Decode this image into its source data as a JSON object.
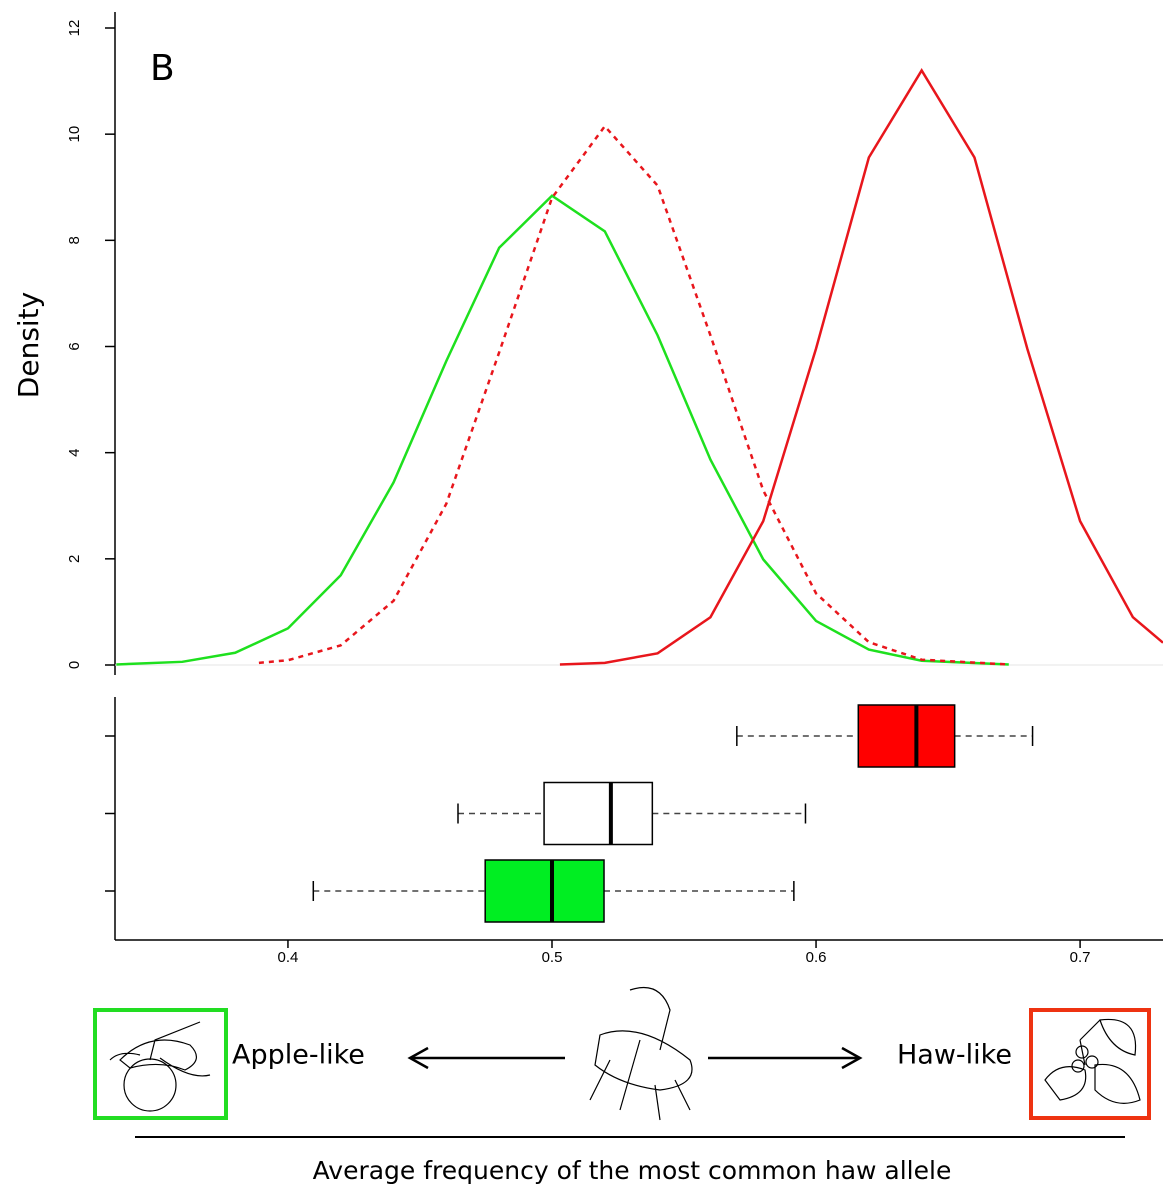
{
  "chart_data": [
    {
      "type": "line",
      "label": "B",
      "ylabel": "Density",
      "xlim": [
        0.3345,
        0.7314
      ],
      "ylim": [
        0,
        12
      ],
      "yticks": [
        0,
        2,
        4,
        6,
        8,
        10,
        12
      ],
      "series": [
        {
          "color": "#1ee01e",
          "dash": false,
          "x": [
            0.335,
            0.36,
            0.38,
            0.4,
            0.42,
            0.44,
            0.46,
            0.48,
            0.5,
            0.52,
            0.54,
            0.56,
            0.58,
            0.6,
            0.62,
            0.64,
            0.673
          ],
          "values": [
            0.01,
            0.06,
            0.23,
            0.69,
            1.69,
            3.44,
            5.73,
            7.86,
            8.84,
            8.17,
            6.21,
            3.87,
            1.99,
            0.83,
            0.29,
            0.08,
            0.01
          ]
        },
        {
          "color": "#e8161c",
          "dash": true,
          "x": [
            0.389,
            0.4,
            0.42,
            0.44,
            0.46,
            0.48,
            0.5,
            0.52,
            0.54,
            0.56,
            0.58,
            0.6,
            0.62,
            0.64,
            0.673
          ],
          "values": [
            0.04,
            0.09,
            0.37,
            1.21,
            3.04,
            5.89,
            8.8,
            10.15,
            9.03,
            6.21,
            3.29,
            1.35,
            0.43,
            0.1,
            0.01
          ]
        },
        {
          "color": "#e8161c",
          "dash": false,
          "x": [
            0.503,
            0.52,
            0.54,
            0.56,
            0.58,
            0.6,
            0.62,
            0.64,
            0.66,
            0.68,
            0.7,
            0.72,
            0.7314
          ],
          "values": [
            0.01,
            0.04,
            0.22,
            0.9,
            2.71,
            5.96,
            9.56,
            11.2,
            9.56,
            5.96,
            2.71,
            0.9,
            0.42
          ]
        }
      ]
    },
    {
      "type": "box",
      "xlabel": "Average frequency of the most common haw allele",
      "xlim": [
        0.3345,
        0.7314
      ],
      "xticks": [
        0.4,
        0.5,
        0.6,
        0.7
      ],
      "annotations": [
        "Apple-like",
        "Haw-like"
      ],
      "boxes": [
        {
          "color": "#ff0000",
          "low": 0.57,
          "q1": 0.616,
          "median": 0.638,
          "q3": 0.6525,
          "high": 0.682
        },
        {
          "color": "#ffffff",
          "low": 0.4644,
          "q1": 0.497,
          "median": 0.5223,
          "q3": 0.538,
          "high": 0.596
        },
        {
          "color": "#00ee22",
          "low": 0.4096,
          "q1": 0.4747,
          "median": 0.5,
          "q3": 0.5197,
          "high": 0.5916
        }
      ]
    }
  ]
}
